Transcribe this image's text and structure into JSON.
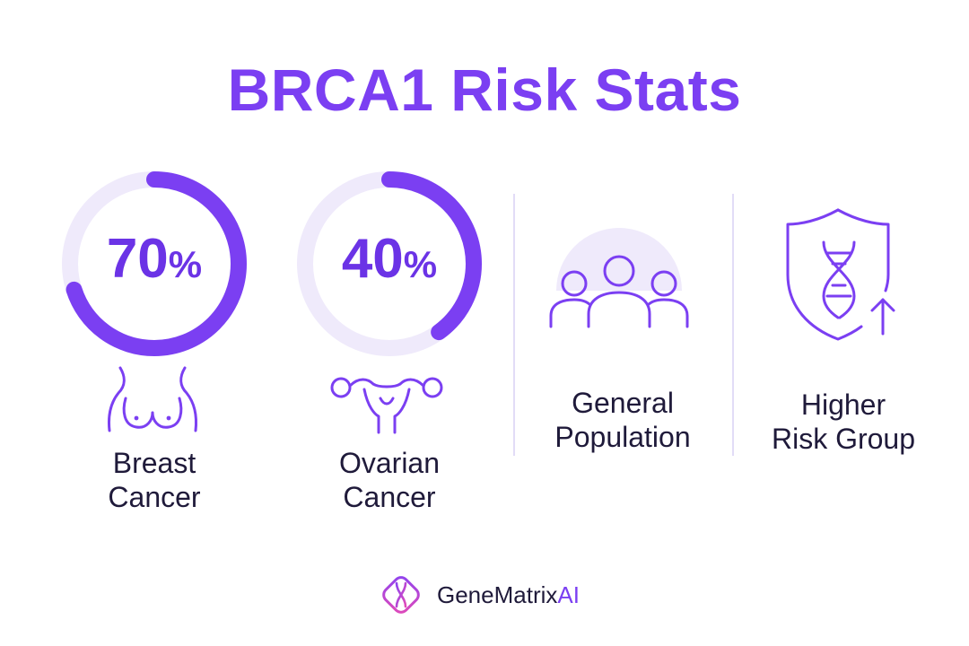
{
  "title": "BRCA1 Risk Stats",
  "colors": {
    "accent": "#7b3ff2",
    "ring_track": "#efeafb",
    "text": "#1f1a3a"
  },
  "stats": [
    {
      "value": 70,
      "value_label": "70",
      "unit": "%",
      "label_line1": "Breast",
      "label_line2": "Cancer",
      "icon": "breast-icon",
      "progress_fraction": 0.7
    },
    {
      "value": 40,
      "value_label": "40",
      "unit": "%",
      "label_line1": "Ovarian",
      "label_line2": "Cancer",
      "icon": "uterus-icon",
      "progress_fraction": 0.4
    }
  ],
  "groups": [
    {
      "label_line1": "General",
      "label_line2": "Population",
      "icon": "people-group-icon"
    },
    {
      "label_line1": "Higher",
      "label_line2": "Risk Group",
      "icon": "shield-dna-arrow-icon"
    }
  ],
  "brand": {
    "name": "GeneMatrix",
    "suffix": "AI",
    "icon": "dna-logo-icon"
  }
}
